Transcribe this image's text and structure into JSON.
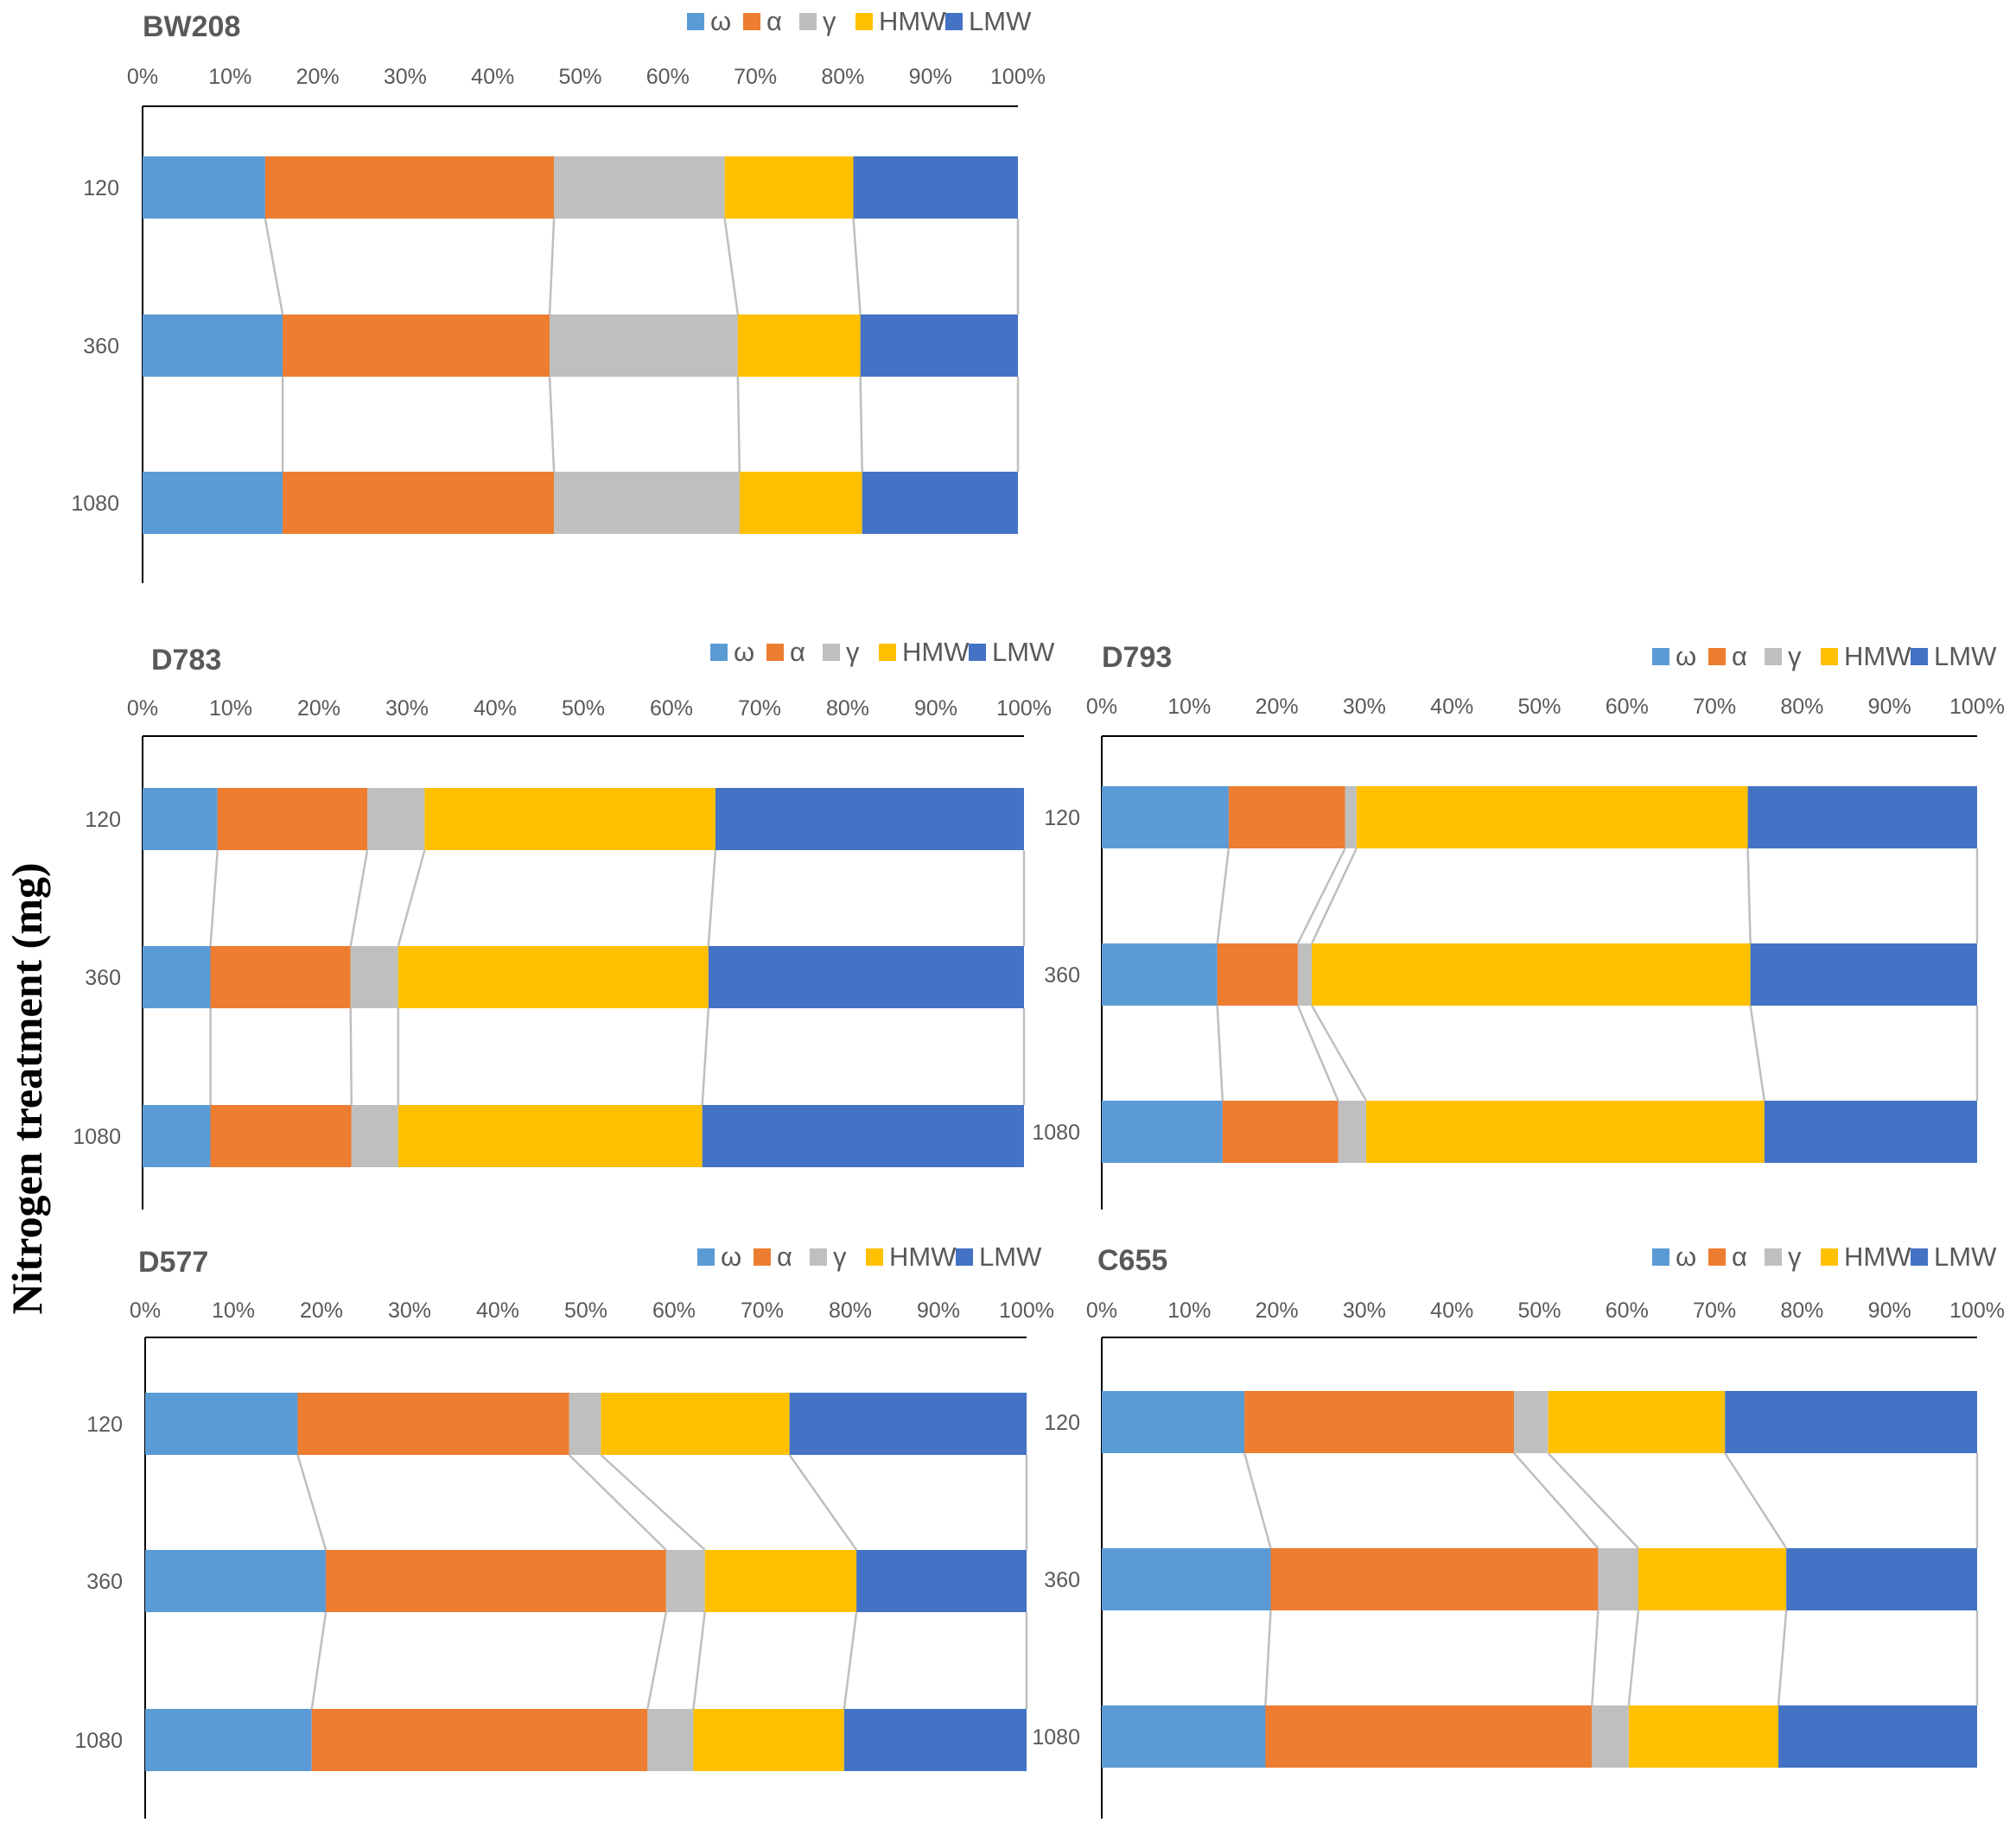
{
  "figure": {
    "ylabel": "Nitrogen treatment (mg)"
  },
  "colors": {
    "ω": "#5B9BD5",
    "α": "#ED7D31",
    "γ": "#BFBFBF",
    "HMW": "#FFC000",
    "LMW": "#4472C4",
    "connector": "#BFBFBF",
    "axis": "#000000",
    "text": "#595959"
  },
  "chart_data": [
    {
      "type": "bar",
      "orientation": "horizontal",
      "stacked": "100%",
      "title": "BW208",
      "categories": [
        "120",
        "360",
        "1080"
      ],
      "xticks": [
        "0%",
        "10%",
        "20%",
        "30%",
        "40%",
        "50%",
        "60%",
        "70%",
        "80%",
        "90%",
        "100%"
      ],
      "xlim": [
        0,
        100
      ],
      "legend": "top-right",
      "series": [
        {
          "name": "ω",
          "values": [
            14,
            16,
            16
          ]
        },
        {
          "name": "α",
          "values": [
            33,
            30.5,
            31
          ]
        },
        {
          "name": "γ",
          "values": [
            19.5,
            21.5,
            21.2
          ]
        },
        {
          "name": "HMW",
          "values": [
            14.7,
            14,
            14
          ]
        },
        {
          "name": "LMW",
          "values": [
            18.8,
            18,
            17.8
          ]
        }
      ]
    },
    {
      "type": "bar",
      "orientation": "horizontal",
      "stacked": "100%",
      "title": "D783",
      "categories": [
        "120",
        "360",
        "1080"
      ],
      "xticks": [
        "0%",
        "10%",
        "20%",
        "30%",
        "40%",
        "50%",
        "60%",
        "70%",
        "80%",
        "90%",
        "100%"
      ],
      "xlim": [
        0,
        100
      ],
      "legend": "top-right",
      "series": [
        {
          "name": "ω",
          "values": [
            8.5,
            7.7,
            7.7
          ]
        },
        {
          "name": "α",
          "values": [
            17,
            15.9,
            16
          ]
        },
        {
          "name": "γ",
          "values": [
            6.5,
            5.4,
            5.3
          ]
        },
        {
          "name": "HMW",
          "values": [
            33,
            35.2,
            34.5
          ]
        },
        {
          "name": "LMW",
          "values": [
            35,
            35.8,
            36.5
          ]
        }
      ]
    },
    {
      "type": "bar",
      "orientation": "horizontal",
      "stacked": "100%",
      "title": "D793",
      "categories": [
        "120",
        "360",
        "1080"
      ],
      "xticks": [
        "0%",
        "10%",
        "20%",
        "30%",
        "40%",
        "50%",
        "60%",
        "70%",
        "80%",
        "90%",
        "100%"
      ],
      "xlim": [
        0,
        100
      ],
      "legend": "top-right",
      "series": [
        {
          "name": "ω",
          "values": [
            14.5,
            13.2,
            13.8
          ]
        },
        {
          "name": "α",
          "values": [
            13.3,
            9.2,
            13.2
          ]
        },
        {
          "name": "γ",
          "values": [
            1.3,
            1.6,
            3.2
          ]
        },
        {
          "name": "HMW",
          "values": [
            44.7,
            50.1,
            45.5
          ]
        },
        {
          "name": "LMW",
          "values": [
            26.2,
            25.9,
            24.3
          ]
        }
      ]
    },
    {
      "type": "bar",
      "orientation": "horizontal",
      "stacked": "100%",
      "title": "D577",
      "categories": [
        "120",
        "360",
        "1080"
      ],
      "xticks": [
        "0%",
        "10%",
        "20%",
        "30%",
        "40%",
        "50%",
        "60%",
        "70%",
        "80%",
        "90%",
        "100%"
      ],
      "xlim": [
        0,
        100
      ],
      "legend": "top-right",
      "series": [
        {
          "name": "ω",
          "values": [
            17.3,
            20.5,
            18.9
          ]
        },
        {
          "name": "α",
          "values": [
            30.8,
            38.6,
            38.1
          ]
        },
        {
          "name": "γ",
          "values": [
            3.6,
            4.4,
            5.2
          ]
        },
        {
          "name": "HMW",
          "values": [
            21.4,
            17.2,
            17.1
          ]
        },
        {
          "name": "LMW",
          "values": [
            26.9,
            19.3,
            20.7
          ]
        }
      ]
    },
    {
      "type": "bar",
      "orientation": "horizontal",
      "stacked": "100%",
      "title": "C655",
      "categories": [
        "120",
        "360",
        "1080"
      ],
      "xticks": [
        "0%",
        "10%",
        "20%",
        "30%",
        "40%",
        "50%",
        "60%",
        "70%",
        "80%",
        "90%",
        "100%"
      ],
      "xlim": [
        0,
        100
      ],
      "legend": "top-right",
      "series": [
        {
          "name": "ω",
          "values": [
            16.3,
            19.3,
            18.7
          ]
        },
        {
          "name": "α",
          "values": [
            30.8,
            37.4,
            37.3
          ]
        },
        {
          "name": "γ",
          "values": [
            3.9,
            4.6,
            4.2
          ]
        },
        {
          "name": "HMW",
          "values": [
            20.2,
            16.9,
            17.1
          ]
        },
        {
          "name": "LMW",
          "values": [
            28.8,
            21.8,
            22.7
          ]
        }
      ]
    }
  ]
}
